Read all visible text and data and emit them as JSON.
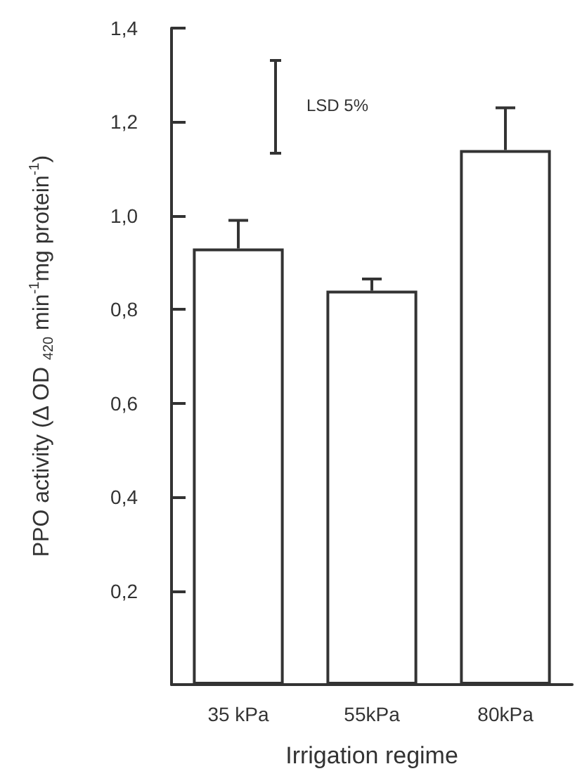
{
  "chart_data": {
    "type": "bar",
    "categories": [
      "35 kPa",
      "55kPa",
      "80kPa"
    ],
    "values": [
      0.93,
      0.84,
      1.14
    ],
    "errors": [
      [
        0.93,
        0.99
      ],
      [
        0.84,
        0.865
      ],
      [
        1.14,
        1.23
      ]
    ],
    "color": "#ffffff",
    "xlabel": "Irrigation regime",
    "ylabel": "PPO activity (Δ OD $_{420}$ min$^{-1}$mg protein$^{-1}$)",
    "ylim": [
      0,
      1.4
    ],
    "yticks": [
      {
        "value": 0.2,
        "label": "0,2"
      },
      {
        "value": 0.4,
        "label": "0,4"
      },
      {
        "value": 0.6,
        "label": "0,6"
      },
      {
        "value": 0.8,
        "label": "0,8"
      },
      {
        "value": 1.0,
        "label": "1,0"
      },
      {
        "value": 1.2,
        "label": "1,2"
      },
      {
        "value": 1.4,
        "label": "1,4"
      }
    ],
    "annotations": [
      "LSD 5%"
    ],
    "grid": false
  }
}
